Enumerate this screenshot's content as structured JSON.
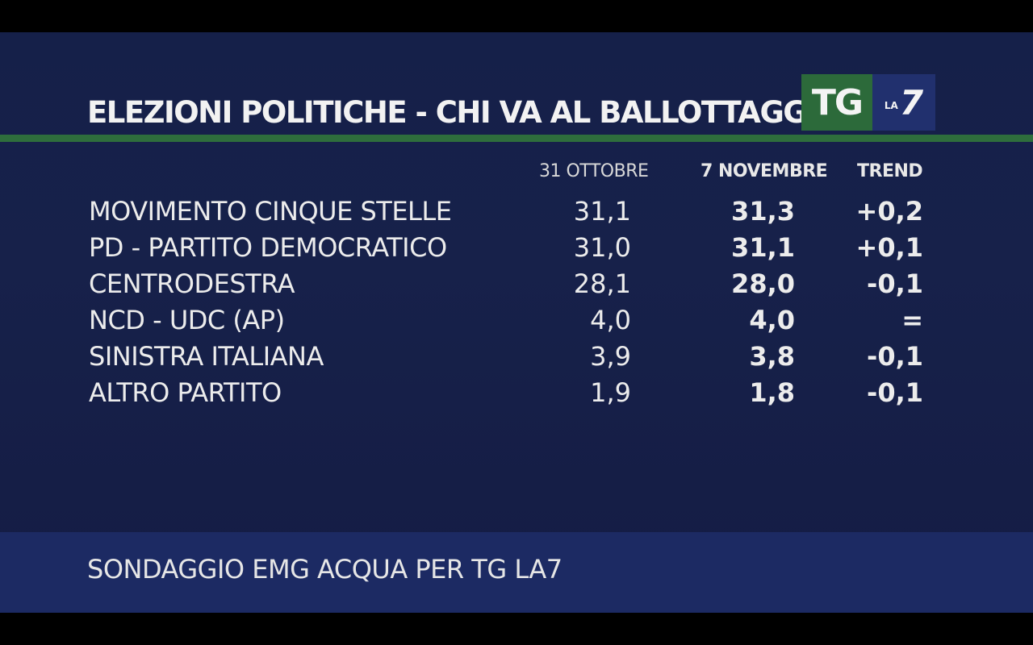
{
  "title": "ELEZIONI POLITICHE - CHI VA AL BALLOTTAGGIO?",
  "logo": {
    "tg": "TG",
    "la": "LA",
    "seven": "7"
  },
  "colors": {
    "background": "#17214a",
    "accent_green": "#2e6e3c",
    "footer": "#1c2a63",
    "logo_blue": "#21306e"
  },
  "chart_data": {
    "type": "table",
    "columns": [
      "31 OTTOBRE",
      "7 NOVEMBRE",
      "TREND"
    ],
    "rows": [
      {
        "party": "MOVIMENTO CINQUE STELLE",
        "oct31": "31,1",
        "nov7": "31,3",
        "trend": "+0,2"
      },
      {
        "party": "PD - PARTITO DEMOCRATICO",
        "oct31": "31,0",
        "nov7": "31,1",
        "trend": "+0,1"
      },
      {
        "party": "CENTRODESTRA",
        "oct31": "28,1",
        "nov7": "28,0",
        "trend": "-0,1"
      },
      {
        "party": "NCD - UDC (AP)",
        "oct31": "4,0",
        "nov7": "4,0",
        "trend": "="
      },
      {
        "party": "SINISTRA ITALIANA",
        "oct31": "3,9",
        "nov7": "3,8",
        "trend": "-0,1"
      },
      {
        "party": "ALTRO PARTITO",
        "oct31": "1,9",
        "nov7": "1,8",
        "trend": "-0,1"
      }
    ]
  },
  "footer": "SONDAGGIO EMG ACQUA PER TG LA7"
}
